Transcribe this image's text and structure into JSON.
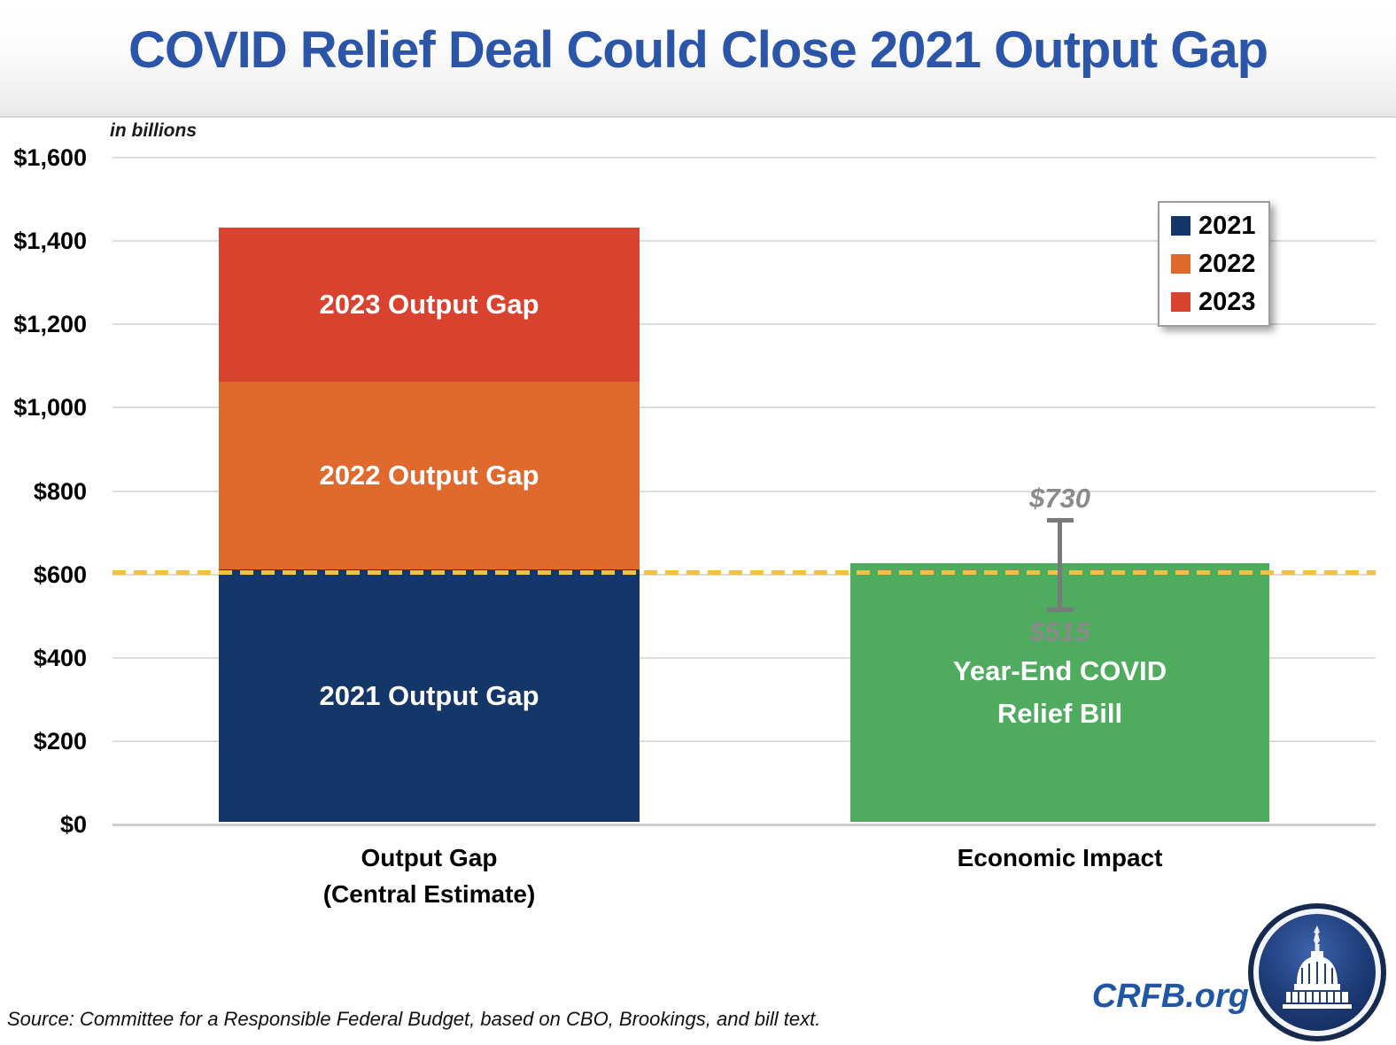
{
  "title": "COVID Relief Deal Could Close 2021 Output Gap",
  "units_note": "in billions",
  "source_note": "Source: Committee for a Responsible Federal Budget, based on CBO, Brookings, and bill text.",
  "branding": {
    "site": "CRFB.org",
    "logo_name": "capitol-dome-logo"
  },
  "colors": {
    "title_blue": "#2B55A8",
    "navy_2021": "#143668",
    "orange_2022": "#E0692E",
    "red_2023": "#D9422F",
    "green_relief": "#4FAC5E",
    "reference_dash": "#F2C144",
    "error_bar_gray": "#7A7A7A",
    "brand_blue": "#2156A5"
  },
  "legend": {
    "items": [
      {
        "label": "2021",
        "color": "#143668"
      },
      {
        "label": "2022",
        "color": "#E0692E"
      },
      {
        "label": "2023",
        "color": "#D9422F"
      }
    ]
  },
  "chart_data": {
    "type": "bar",
    "stacked": true,
    "unit": "USD billions",
    "title": "COVID Relief Deal Could Close 2021 Output Gap",
    "ylabel_note": "in billions",
    "ylim": [
      0,
      1600
    ],
    "grid": "horizontal",
    "legend_position": "upper right",
    "yticks": [
      {
        "value": 1600,
        "label": "$1,600"
      },
      {
        "value": 1400,
        "label": "$1,400"
      },
      {
        "value": 1200,
        "label": "$1,200"
      },
      {
        "value": 1000,
        "label": "$1,000"
      },
      {
        "value": 800,
        "label": "$800"
      },
      {
        "value": 600,
        "label": "$600"
      },
      {
        "value": 400,
        "label": "$400"
      },
      {
        "value": 200,
        "label": "$200"
      },
      {
        "value": 0,
        "label": "$0"
      }
    ],
    "bars": [
      {
        "category_lines": [
          "Output Gap",
          "(Central Estimate)"
        ],
        "total": 1425,
        "segments": [
          {
            "series": "2021",
            "label_lines": [
              "2021 Output Gap"
            ],
            "value": 605,
            "color": "#143668"
          },
          {
            "series": "2022",
            "label_lines": [
              "2022 Output Gap"
            ],
            "value": 450,
            "color": "#E0692E"
          },
          {
            "series": "2023",
            "label_lines": [
              "2023 Output Gap"
            ],
            "value": 370,
            "color": "#D9422F"
          }
        ]
      },
      {
        "category_lines": [
          "Economic Impact"
        ],
        "total": 620,
        "segments": [
          {
            "series": "Year-End COVID Relief Bill",
            "label_lines": [
              "Year-End COVID",
              "Relief Bill"
            ],
            "value": 620,
            "color": "#4FAC5E"
          }
        ],
        "error_bar": {
          "high": 730,
          "low": 515,
          "high_label": "$730",
          "low_label": "$515"
        }
      }
    ],
    "reference_line": {
      "value": 605,
      "style": "dashed",
      "color": "#F2C144"
    }
  }
}
